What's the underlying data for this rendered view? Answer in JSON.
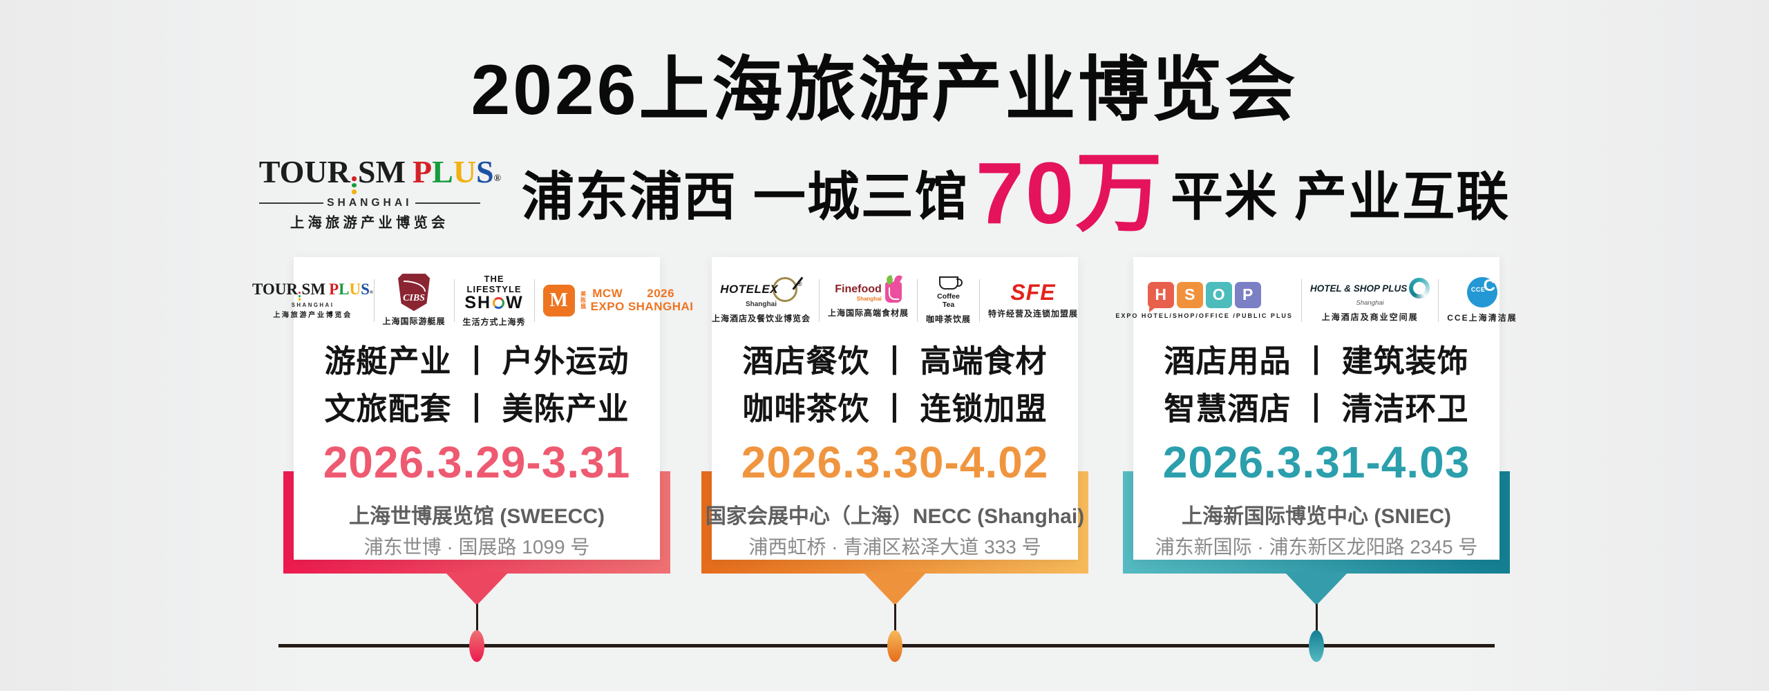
{
  "colors": {
    "accent_pink": "#e4135c",
    "timeline": "#241a16",
    "tp_red": "#d42127",
    "tp_green": "#169c3c",
    "tp_gold": "#f2b10e",
    "tp_blue": "#1b52a4",
    "c1_date": "#ee5a71",
    "c1_left": "#ec1a4e",
    "c1_right": "#ee7173",
    "c1_mid": "#ed4660",
    "c2_date": "#f0953f",
    "c2_left": "#e56b1b",
    "c2_right": "#f6ba5b",
    "c2_mid": "#ee923b",
    "c3_date": "#2b9fac",
    "c3_left": "#55bac1",
    "c3_right": "#137e92",
    "c3_mid": "#349caa",
    "mcw_orange": "#ee7420",
    "sfe_red": "#e2231a",
    "cibs_maroon": "#8b2532",
    "hotelex_gold": "#a08a4a",
    "fine_red": "#8a2125",
    "fine_pink": "#ec4f9d",
    "fine_green": "#7ac143",
    "hsop_h": "#e8604c",
    "hsop_s": "#f0923c",
    "hsop_o": "#4cbcbc",
    "hsop_p": "#7b80c5",
    "hsp_teal": "#15808f",
    "cce_blue": "#2398d5"
  },
  "header": {
    "title": "2026上海旅游产业博览会",
    "tagline_part1": "浦东浦西  一城三馆",
    "tagline_highlight": "70万",
    "tagline_part2": "平米  产业互联"
  },
  "brand": {
    "word_tour": "TOUR",
    "word_sm": "SM",
    "word_p": "P",
    "word_l": "L",
    "word_u": "U",
    "word_s": "S",
    "reg": "®",
    "sub_en": "SHANGHAI",
    "sub_cn": "上海旅游产业博览会"
  },
  "cards": [
    {
      "categories_line1": "游艇产业 丨 户外运动",
      "categories_line2": "文旅配套 丨 美陈产业",
      "date": "2026.3.29-3.31",
      "venue": "上海世博展览馆 (SWEECC)",
      "address": "浦东世博 · 国展路 1099 号",
      "logos": {
        "cibs": {
          "abbr": "CIBS",
          "label": "上海国际游艇展"
        },
        "lifestyle": {
          "top": "THE LIFESTYLE",
          "show_left": "SH",
          "show_right": "W",
          "label": "生活方式上海秀"
        },
        "mcw": {
          "glyph": "M",
          "line1": "MCW",
          "line2": "EXPO",
          "vertical": "美陈展",
          "year": "2026",
          "city": "SHANGHAI"
        }
      }
    },
    {
      "categories_line1": "酒店餐饮 丨 高端食材",
      "categories_line2": "咖啡茶饮 丨 连锁加盟",
      "date": "2026.3.30-4.02",
      "venue": "国家会展中心（上海）NECC (Shanghai)",
      "address": "浦西虹桥 · 青浦区崧泽大道 333 号",
      "logos": {
        "hotelex": {
          "name": "HOTELEX",
          "reg": "®",
          "sub": "Shanghai",
          "label": "上海酒店及餐饮业博览会"
        },
        "finefood": {
          "name": "Finefood",
          "sub": "Shanghai",
          "label": "上海国际高端食材展"
        },
        "coffeetea": {
          "line1": "Coffee",
          "line2": "Tea",
          "label": "咖啡茶饮展"
        },
        "sfe": {
          "name": "SFE",
          "label": "特许经营及连锁加盟展"
        }
      }
    },
    {
      "categories_line1": "酒店用品 丨 建筑装饰",
      "categories_line2": "智慧酒店 丨 清洁环卫",
      "date": "2026.3.31-4.03",
      "venue": "上海新国际博览中心 (SNIEC)",
      "address": "浦东新国际 · 浦东新区龙阳路 2345 号",
      "logos": {
        "hsop": {
          "h": "H",
          "s": "S",
          "o": "O",
          "p": "P",
          "label": "EXPO HOTEL/SHOP/OFFICE /PUBLIC PLUS"
        },
        "hotelshopplus": {
          "name": "HOTEL & SHOP PLUS",
          "sub": "Shanghai",
          "label": "上海酒店及商业空间展"
        },
        "cce": {
          "letter": "C",
          "abbr": "CCE",
          "label": "CCE上海清洁展"
        }
      }
    }
  ]
}
